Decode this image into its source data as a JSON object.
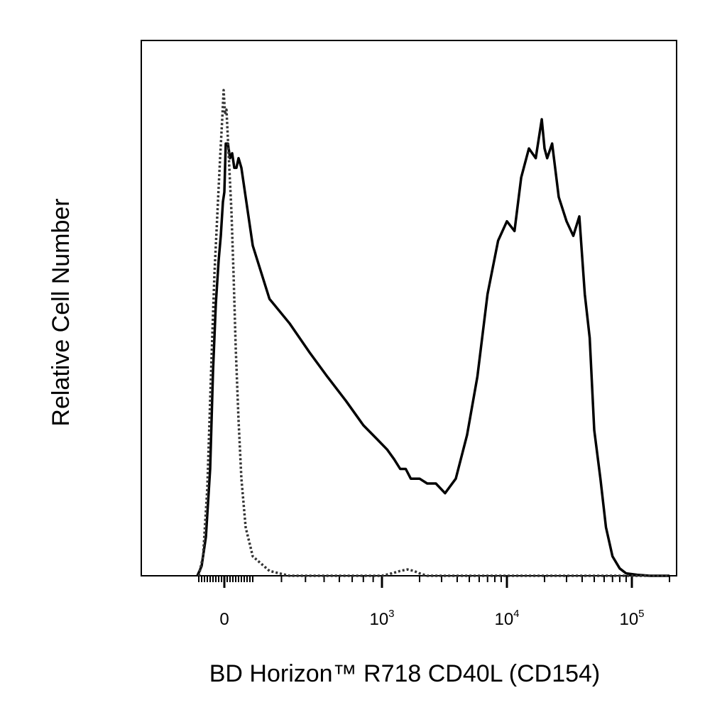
{
  "chart_data": {
    "type": "line",
    "title": "",
    "xlabel": "BD Horizon™ R718 CD40L (CD154)",
    "ylabel": "Relative Cell Number",
    "x_scale": "biexponential (linear near 0, log above)",
    "xlim": [
      -200,
      200000
    ],
    "ylim": [
      0,
      100
    ],
    "grid": false,
    "legend": "none",
    "x_ticks": [
      {
        "base": "0",
        "exp": "",
        "value": 0
      },
      {
        "base": "10",
        "exp": "3",
        "value": 1000
      },
      {
        "base": "10",
        "exp": "4",
        "value": 10000
      },
      {
        "base": "10",
        "exp": "5",
        "value": 100000
      }
    ],
    "series": [
      {
        "style": "solid",
        "color": "#000000",
        "x": [
          -190,
          -160,
          -130,
          -100,
          -80,
          -60,
          -40,
          -25,
          -10,
          0,
          10,
          25,
          40,
          55,
          70,
          85,
          100,
          120,
          150,
          200,
          260,
          330,
          420,
          520,
          650,
          800,
          950,
          1100,
          1250,
          1400,
          1550,
          1700,
          1850,
          2000,
          2300,
          2700,
          3200,
          3900,
          4800,
          5800,
          7000,
          8500,
          10000,
          11500,
          13000,
          15000,
          17000,
          19000,
          20000,
          21000,
          23000,
          26000,
          30000,
          34000,
          38000,
          42000,
          46000,
          50000,
          56000,
          62000,
          70000,
          80000,
          90000,
          110000,
          140000,
          200000
        ],
        "values": [
          0,
          2,
          8,
          22,
          42,
          56,
          65,
          70,
          77,
          79,
          89,
          89,
          86,
          87,
          84,
          84,
          86,
          84,
          78,
          68,
          57,
          52,
          46,
          41,
          36,
          31,
          28,
          26,
          24,
          22,
          22,
          20,
          20,
          20,
          19,
          19,
          17,
          20,
          29,
          41,
          58,
          69,
          73,
          71,
          82,
          88,
          86,
          94,
          88,
          86,
          89,
          78,
          73,
          70,
          74,
          58,
          49,
          30,
          20,
          10,
          4,
          1.5,
          0.5,
          0.2,
          0,
          0
        ]
      },
      {
        "style": "dotted",
        "color": "#333333",
        "x": [
          -180,
          -150,
          -120,
          -90,
          -70,
          -50,
          -30,
          -15,
          -5,
          5,
          15,
          30,
          50,
          65,
          80,
          100,
          120,
          150,
          200,
          260,
          330,
          420,
          520,
          600,
          800,
          1000,
          1200,
          1400,
          1600,
          1800,
          2000,
          2300,
          2600,
          3000,
          5000,
          10000,
          50000,
          200000
        ],
        "values": [
          0,
          4,
          18,
          45,
          62,
          74,
          86,
          94,
          100,
          95,
          96,
          87,
          75,
          62,
          47,
          32,
          20,
          10,
          4,
          1,
          0,
          0,
          0,
          0,
          0,
          0,
          0.5,
          1,
          1.3,
          1,
          0.5,
          0,
          0,
          0,
          0,
          0,
          0,
          0
        ]
      }
    ]
  }
}
